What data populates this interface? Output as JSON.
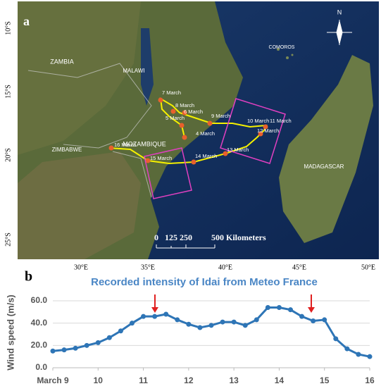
{
  "map": {
    "panel_label": "a",
    "lat_labels": [
      "10°S",
      "15°S",
      "20°S",
      "25°S"
    ],
    "lon_labels": [
      "30°E",
      "35°E",
      "40°E",
      "45°E",
      "50°E"
    ],
    "countries": [
      "ZAMBIA",
      "MALAWI",
      "MOZAMBIQUE",
      "ZIMBABWE",
      "MADAGASCAR",
      "COMOROS"
    ],
    "dates": [
      "7 March",
      "8 March",
      "6 March",
      "5 March",
      "9 March",
      "4 March",
      "10 March",
      "11 March",
      "12 March",
      "13 March",
      "14 March",
      "15 March",
      "16 March"
    ],
    "north": "N",
    "scale_labels": [
      "0",
      "125",
      "250",
      "500 Kilometers"
    ]
  },
  "chart_data": {
    "type": "line",
    "panel_label": "b",
    "title": "Recorded intensity of Idai from Meteo France",
    "y_label": "Wind speed (m/s)",
    "x": [
      9,
      9.25,
      9.5,
      9.75,
      10,
      10.25,
      10.5,
      10.75,
      11,
      11.25,
      11.5,
      11.75,
      12,
      12.25,
      12.5,
      12.75,
      13,
      13.25,
      13.5,
      13.75,
      14,
      14.25,
      14.5,
      14.75,
      15,
      15.25,
      15.5,
      15.75,
      16
    ],
    "series": [
      {
        "name": "Wind speed",
        "color": "#2e75b6",
        "values": [
          15,
          16,
          17.5,
          20,
          22.5,
          27,
          33,
          40,
          46,
          46,
          48,
          43,
          39,
          36,
          38,
          41,
          41,
          38,
          43,
          54,
          54,
          52,
          46,
          42,
          43,
          26,
          17,
          12,
          10
        ]
      }
    ],
    "xlim": [
      9,
      16
    ],
    "xticks": [
      {
        "value": 9,
        "label": "March 9"
      },
      10,
      11,
      12,
      13,
      14,
      15,
      16
    ],
    "ylim": [
      0,
      60
    ],
    "yticks": [
      {
        "value": 0,
        "label": "0.0"
      },
      {
        "value": 20,
        "label": "20.0"
      },
      {
        "value": 40,
        "label": "40.0"
      },
      {
        "value": 60,
        "label": "60.0"
      }
    ],
    "grid": true
  }
}
